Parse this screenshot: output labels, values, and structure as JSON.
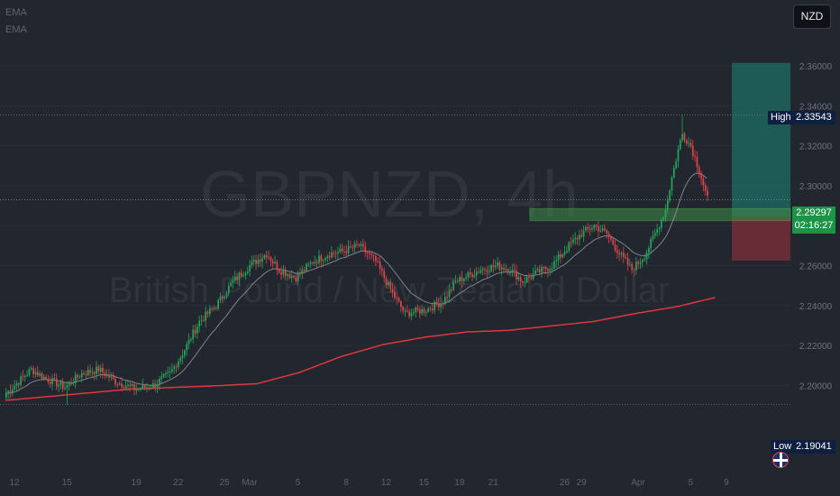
{
  "indicators": [
    "EMA",
    "EMA"
  ],
  "currency_button": "NZD",
  "watermark": {
    "symbol": "GBPNZD, 4h",
    "description": "British Pound / New Zealand Dollar"
  },
  "markers": {
    "high_label": "High",
    "high_value": "2.33543",
    "low_label": "Low",
    "low_value": "2.19041",
    "current_price": "2.29297",
    "countdown": "02:16:27"
  },
  "colors": {
    "background": "#22262f",
    "up": "#26a65b",
    "down": "#e0454a",
    "ema_slow": "#e0363c",
    "ema_fast": "#9aa0a8",
    "target_zone": "#1f6e64",
    "stop_zone": "#7a2e38",
    "entry_zone": "#3f8f46"
  },
  "chart_data": {
    "type": "candlestick",
    "symbol": "GBPNZD",
    "timeframe": "4h",
    "y_ticks": [
      "2.36000",
      "2.34000",
      "2.32000",
      "2.30000",
      "2.28000",
      "2.26000",
      "2.24000",
      "2.22000",
      "2.20000"
    ],
    "x_ticks": [
      "12",
      "15",
      "19",
      "22",
      "25",
      "Mar",
      "5",
      "8",
      "12",
      "15",
      "18",
      "21",
      "26",
      "29",
      "Apr",
      "5",
      "9"
    ],
    "ylim": [
      2.185,
      2.372
    ],
    "high": 2.33543,
    "low": 2.19041,
    "last_price": 2.29297,
    "trade_setup": {
      "entry_zone": [
        2.2825,
        2.2885
      ],
      "entry": 2.2845,
      "take_profit": 2.3615,
      "stop_loss": 2.2625
    },
    "ema_slow_anchors": [
      [
        0,
        2.1925
      ],
      [
        60,
        2.1982
      ],
      [
        100,
        2.1998
      ],
      [
        120,
        2.2009
      ],
      [
        140,
        2.2065
      ],
      [
        160,
        2.2145
      ],
      [
        180,
        2.2205
      ],
      [
        200,
        2.2242
      ],
      [
        220,
        2.2268
      ],
      [
        240,
        2.2276
      ],
      [
        260,
        2.2298
      ],
      [
        280,
        2.232
      ],
      [
        300,
        2.236
      ],
      [
        320,
        2.2395
      ],
      [
        340,
        2.2445
      ],
      [
        357,
        2.2498
      ]
    ],
    "close_anchors": [
      [
        0,
        2.196
      ],
      [
        12,
        2.208
      ],
      [
        18,
        2.204
      ],
      [
        28,
        2.199
      ],
      [
        36,
        2.206
      ],
      [
        44,
        2.208
      ],
      [
        52,
        2.202
      ],
      [
        62,
        2.198
      ],
      [
        70,
        2.2
      ],
      [
        78,
        2.206
      ],
      [
        84,
        2.216
      ],
      [
        92,
        2.232
      ],
      [
        100,
        2.24
      ],
      [
        108,
        2.252
      ],
      [
        116,
        2.26
      ],
      [
        124,
        2.266
      ],
      [
        130,
        2.258
      ],
      [
        138,
        2.254
      ],
      [
        146,
        2.262
      ],
      [
        154,
        2.266
      ],
      [
        160,
        2.267
      ],
      [
        168,
        2.27
      ],
      [
        176,
        2.262
      ],
      [
        184,
        2.246
      ],
      [
        190,
        2.236
      ],
      [
        200,
        2.238
      ],
      [
        208,
        2.242
      ],
      [
        214,
        2.252
      ],
      [
        220,
        2.255
      ],
      [
        226,
        2.258
      ],
      [
        234,
        2.26
      ],
      [
        240,
        2.258
      ],
      [
        246,
        2.252
      ],
      [
        252,
        2.256
      ],
      [
        260,
        2.26
      ],
      [
        268,
        2.27
      ],
      [
        274,
        2.276
      ],
      [
        280,
        2.28
      ],
      [
        286,
        2.276
      ],
      [
        292,
        2.266
      ],
      [
        298,
        2.258
      ],
      [
        304,
        2.265
      ],
      [
        310,
        2.278
      ],
      [
        314,
        2.288
      ],
      [
        317,
        2.304
      ],
      [
        320,
        2.318
      ],
      [
        322,
        2.326
      ],
      [
        326,
        2.32
      ],
      [
        330,
        2.308
      ],
      [
        334,
        2.293
      ]
    ]
  }
}
